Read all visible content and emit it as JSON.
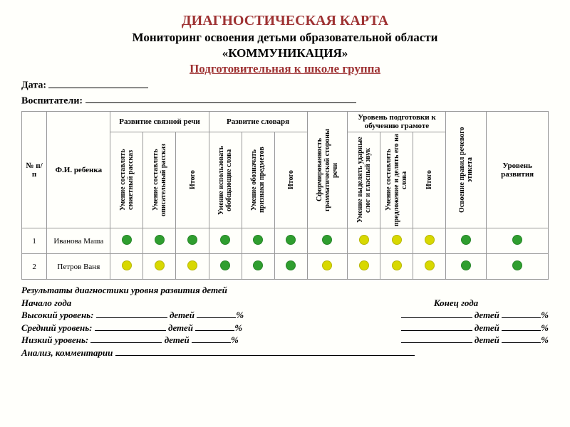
{
  "title": "ДИАГНОСТИЧЕСКАЯ КАРТА",
  "subtitle1": "Мониторинг освоения детьми образовательной области",
  "subtitle2": "«КОММУНИКАЦИЯ»",
  "group_line": "Подготовительная к школе группа",
  "date_label": "Дата:",
  "educators_label": "Воспитатели:",
  "colors": {
    "green": "#2f9e2f",
    "yellow": "#d8d800"
  },
  "header": {
    "num": "№ п/п",
    "child_name": "Ф.И. ребенка",
    "group_connected_speech": "Развитие связной речи",
    "group_vocabulary": "Развитие словаря",
    "grammar_side": "Сформированность грамматической стороны речи",
    "group_literacy": "Уровень подготовки к обучению грамоте",
    "speech_etiquette": "Освоение правил речевого этикета",
    "dev_level": "Уровень развития",
    "subs": {
      "story_plot": "Умение составлять сюжетный рассказ",
      "story_descriptive": "Умение составлять описательный рассказ",
      "itogo1": "Итого",
      "generalizing_words": "Умение использовать обобщающие слова",
      "object_features": "Умение обозначать признаки предметов",
      "itogo2": "Итого",
      "stressed_syllable": "Умение выделять ударные слог и гласный звук",
      "sentence_and_word": "Умение составлять предложение и делить его на слова",
      "itogo3": "Итого"
    }
  },
  "rows": [
    {
      "n": "1",
      "name": "Иванова Маша",
      "cells": [
        "green",
        "green",
        "green",
        "green",
        "green",
        "green",
        "green",
        "yellow",
        "yellow",
        "yellow",
        "green",
        "green"
      ]
    },
    {
      "n": "2",
      "name": "Петров Ваня",
      "cells": [
        "yellow",
        "yellow",
        "yellow",
        "green",
        "green",
        "green",
        "yellow",
        "yellow",
        "yellow",
        "yellow",
        "green",
        "green"
      ]
    }
  ],
  "results": {
    "title": "Результаты диагностики уровня развития детей",
    "start_year": "Начало года",
    "end_year": "Конец года",
    "high": "Высокий уровень:",
    "mid": "Средний уровень:",
    "low": "Низкий  уровень:",
    "children_word": "детей",
    "percent": "%",
    "analysis": "Анализ, комментарии"
  }
}
